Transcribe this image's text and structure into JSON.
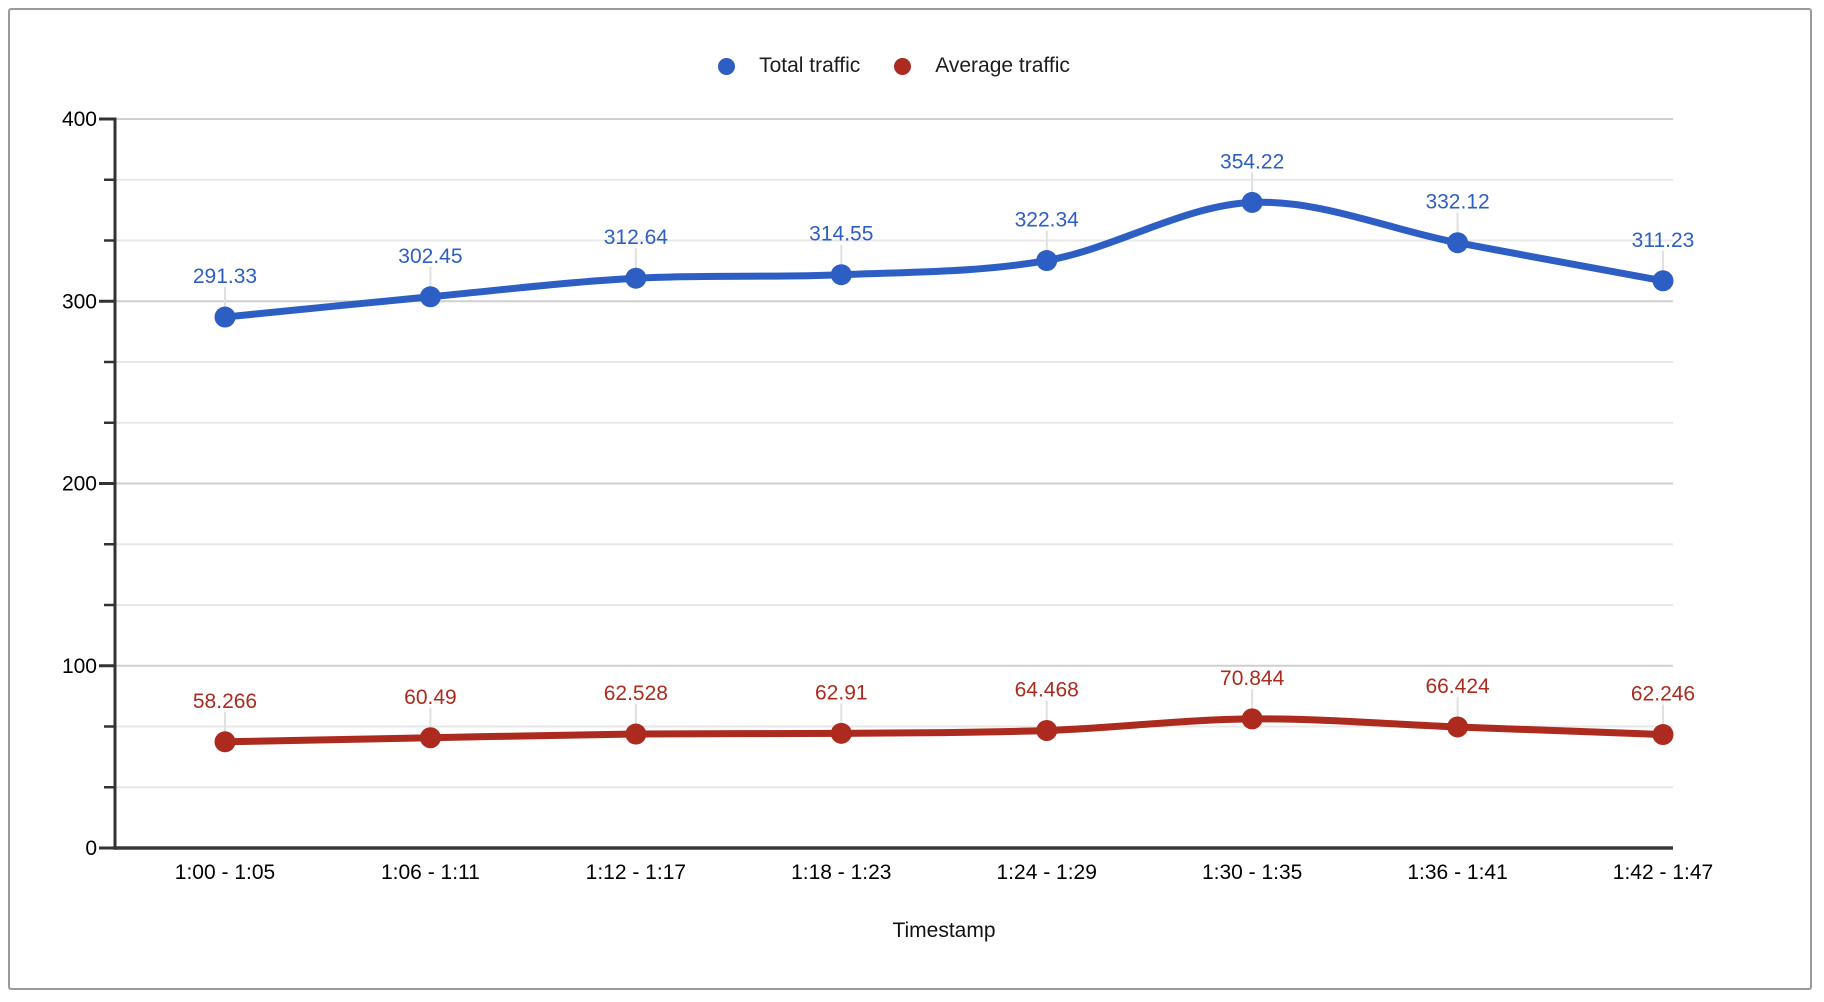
{
  "frame": {
    "border_color": "#9a9a9a",
    "background": "#ffffff"
  },
  "chart_data": {
    "type": "line",
    "smooth": true,
    "grid": true,
    "legend_position": "top",
    "title": "",
    "xlabel": "Timestamp",
    "ylabel": "",
    "ylim": [
      0,
      400
    ],
    "yticks": [
      0,
      100,
      200,
      300,
      400
    ],
    "ytick_labels": [
      "0",
      "100",
      "200",
      "300",
      "400"
    ],
    "minor_grid_step": 33.3333,
    "categories": [
      "1:00 - 1:05",
      "1:06 - 1:11",
      "1:12 - 1:17",
      "1:18 - 1:23",
      "1:24 - 1:29",
      "1:30 - 1:35",
      "1:36 - 1:41",
      "1:42 - 1:47"
    ],
    "series": [
      {
        "name": "Total traffic",
        "color": "#2D5EC4",
        "values": [
          291.33,
          302.45,
          312.64,
          314.55,
          322.34,
          354.22,
          332.12,
          311.23
        ],
        "labels": [
          "291.33",
          "302.45",
          "312.64",
          "314.55",
          "322.34",
          "354.22",
          "332.12",
          "311.23"
        ]
      },
      {
        "name": "Average traffic",
        "color": "#AC2B1E",
        "values": [
          58.266,
          60.49,
          62.528,
          62.91,
          64.468,
          70.844,
          66.424,
          62.246
        ],
        "labels": [
          "58.266",
          "60.49",
          "62.528",
          "62.91",
          "64.468",
          "70.844",
          "66.424",
          "62.246"
        ]
      }
    ],
    "colors": {
      "axis_line": "#333333",
      "baseline": "#383838",
      "major_grid": "#cfcfcf",
      "minor_grid": "#e8e8e8",
      "label_stem": "#e0e0e0",
      "tick_text": "#000000"
    }
  }
}
